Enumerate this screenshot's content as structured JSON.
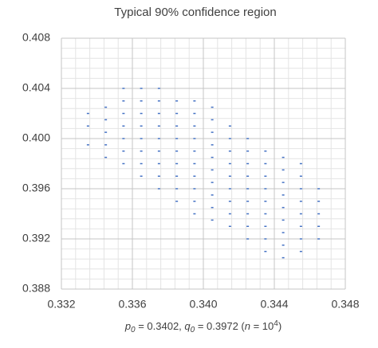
{
  "chart_data": {
    "type": "scatter",
    "title": "Typical 90% confidence region",
    "xlabel": [
      "p",
      "0",
      " = 0.3402, ",
      "q",
      "0",
      " = 0.3972 (",
      "n",
      " = 10",
      "4",
      ")"
    ],
    "color": "#4472c4",
    "grid": true,
    "xlim": [
      0.332,
      0.348
    ],
    "ylim": [
      0.388,
      0.408
    ],
    "xticks": [
      0.332,
      0.336,
      {
        "value": 0.34,
        "label": "0.340"
      },
      0.344,
      0.348
    ],
    "yticks": [
      0.388,
      0.392,
      0.396,
      {
        "value": 0.4,
        "label": "0.400"
      },
      0.404,
      0.408
    ],
    "xminorticks": [
      0.3328,
      0.3336,
      0.3344,
      0.3352,
      0.3368,
      0.3376,
      0.3384,
      0.3392,
      0.3408,
      0.3416,
      0.3424,
      0.3432,
      0.3448,
      0.3456,
      0.3464,
      0.3472
    ],
    "yminorticks": [
      0.3888,
      0.3896,
      0.3904,
      0.3912,
      0.3928,
      0.3936,
      0.3944,
      0.3952,
      0.3968,
      0.3976,
      0.3984,
      0.3992,
      0.4008,
      0.4016,
      0.4024,
      0.4032,
      0.4048,
      0.4056,
      0.4064,
      0.4072
    ],
    "x": [
      0.3335,
      0.3335,
      0.3335,
      0.3345,
      0.3345,
      0.3345,
      0.3345,
      0.3345,
      0.3355,
      0.3355,
      0.3355,
      0.3355,
      0.3355,
      0.3355,
      0.3355,
      0.3365,
      0.3365,
      0.3365,
      0.3365,
      0.3365,
      0.3365,
      0.3365,
      0.3365,
      0.3375,
      0.3375,
      0.3375,
      0.3375,
      0.3375,
      0.3375,
      0.3375,
      0.3375,
      0.3375,
      0.3385,
      0.3385,
      0.3385,
      0.3385,
      0.3385,
      0.3385,
      0.3385,
      0.3385,
      0.3385,
      0.3395,
      0.3395,
      0.3395,
      0.3395,
      0.3395,
      0.3395,
      0.3395,
      0.3395,
      0.3395,
      0.3395,
      0.3405,
      0.3405,
      0.3405,
      0.3405,
      0.3405,
      0.3405,
      0.3405,
      0.3405,
      0.3405,
      0.3405,
      0.3415,
      0.3415,
      0.3415,
      0.3415,
      0.3415,
      0.3415,
      0.3415,
      0.3415,
      0.3415,
      0.3425,
      0.3425,
      0.3425,
      0.3425,
      0.3425,
      0.3425,
      0.3425,
      0.3425,
      0.3425,
      0.3435,
      0.3435,
      0.3435,
      0.3435,
      0.3435,
      0.3435,
      0.3435,
      0.3435,
      0.3435,
      0.3445,
      0.3445,
      0.3445,
      0.3445,
      0.3445,
      0.3445,
      0.3445,
      0.3445,
      0.3445,
      0.3455,
      0.3455,
      0.3455,
      0.3455,
      0.3455,
      0.3455,
      0.3455,
      0.3455,
      0.3465,
      0.3465,
      0.3465,
      0.3465,
      0.3465
    ],
    "y": [
      0.3995,
      0.401,
      0.402,
      0.3985,
      0.3995,
      0.4005,
      0.4015,
      0.4025,
      0.398,
      0.399,
      0.4,
      0.401,
      0.402,
      0.403,
      0.404,
      0.397,
      0.398,
      0.399,
      0.4,
      0.401,
      0.402,
      0.403,
      0.404,
      0.396,
      0.397,
      0.398,
      0.399,
      0.4,
      0.401,
      0.402,
      0.403,
      0.404,
      0.395,
      0.396,
      0.397,
      0.398,
      0.399,
      0.4,
      0.401,
      0.402,
      0.403,
      0.394,
      0.395,
      0.396,
      0.397,
      0.398,
      0.399,
      0.4,
      0.401,
      0.402,
      0.403,
      0.3935,
      0.3945,
      0.3955,
      0.3965,
      0.3975,
      0.3985,
      0.3995,
      0.4005,
      0.4015,
      0.4025,
      0.393,
      0.394,
      0.395,
      0.396,
      0.397,
      0.398,
      0.399,
      0.4,
      0.401,
      0.392,
      0.393,
      0.394,
      0.395,
      0.396,
      0.397,
      0.398,
      0.399,
      0.4,
      0.391,
      0.392,
      0.393,
      0.394,
      0.395,
      0.396,
      0.397,
      0.398,
      0.399,
      0.3905,
      0.3915,
      0.3925,
      0.3935,
      0.3945,
      0.3955,
      0.3965,
      0.3975,
      0.3985,
      0.391,
      0.392,
      0.393,
      0.394,
      0.395,
      0.396,
      0.397,
      0.398,
      0.392,
      0.393,
      0.394,
      0.395,
      0.396
    ]
  }
}
